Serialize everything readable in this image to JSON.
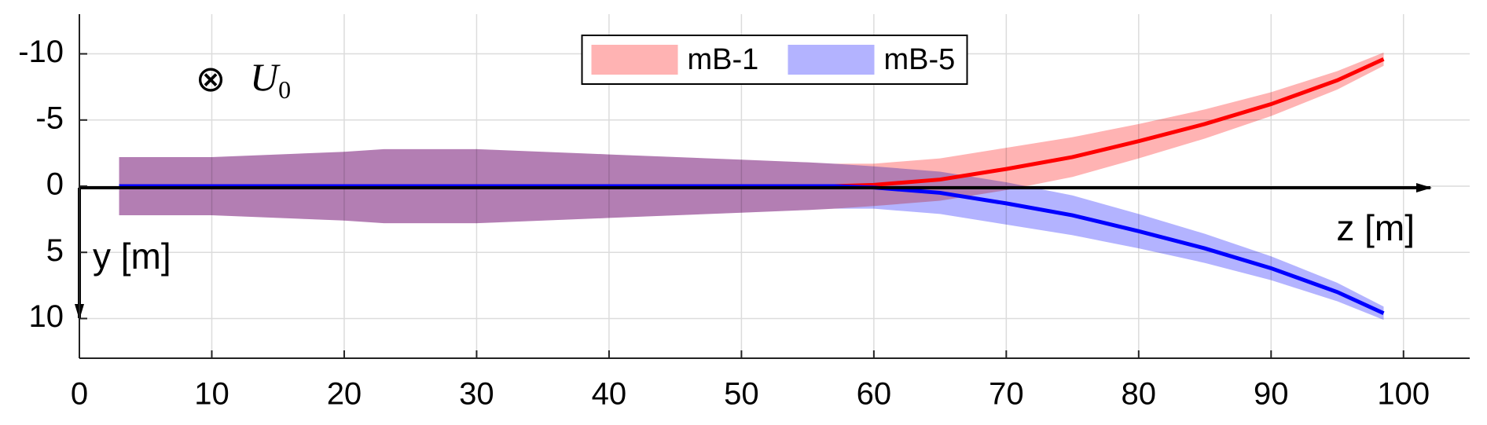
{
  "chart_data": {
    "type": "band",
    "x": [
      3,
      10,
      20,
      23,
      30,
      40,
      50,
      55,
      57,
      60,
      65,
      70,
      75,
      80,
      85,
      90,
      95,
      98.5
    ],
    "series": [
      {
        "name": "mB-1",
        "color": "#ff0000",
        "band_color": "#ffb3b3",
        "values": [
          0,
          0,
          0,
          0,
          0,
          0,
          0,
          0,
          0,
          -0.1,
          -0.5,
          -1.3,
          -2.2,
          -3.4,
          -4.7,
          -6.2,
          -8.0,
          -9.6
        ],
        "lower": [
          -2.2,
          -2.2,
          -2.6,
          -2.8,
          -2.8,
          -2.4,
          -2.0,
          -1.8,
          -1.7,
          -1.7,
          -2.1,
          -2.9,
          -3.7,
          -4.7,
          -5.8,
          -7.1,
          -8.7,
          -10.1
        ],
        "upper": [
          2.2,
          2.2,
          2.6,
          2.8,
          2.8,
          2.4,
          2.0,
          1.8,
          1.7,
          1.5,
          1.1,
          0.3,
          -0.7,
          -2.1,
          -3.6,
          -5.3,
          -7.3,
          -9.1
        ]
      },
      {
        "name": "mB-5",
        "color": "#0000ff",
        "band_color": "#b3b3ff",
        "values": [
          0,
          0,
          0,
          0,
          0,
          0,
          0,
          0,
          0,
          0.1,
          0.5,
          1.3,
          2.2,
          3.4,
          4.7,
          6.2,
          8.0,
          9.6
        ],
        "lower": [
          -2.2,
          -2.2,
          -2.6,
          -2.8,
          -2.8,
          -2.4,
          -2.0,
          -1.8,
          -1.7,
          -1.5,
          -1.1,
          -0.3,
          0.7,
          2.1,
          3.6,
          5.3,
          7.3,
          9.1
        ],
        "upper": [
          2.2,
          2.2,
          2.6,
          2.8,
          2.8,
          2.4,
          2.0,
          1.8,
          1.7,
          1.7,
          2.1,
          2.9,
          3.7,
          4.7,
          5.8,
          7.1,
          8.7,
          10.1
        ]
      }
    ],
    "xlim": [
      0,
      105
    ],
    "ylim": [
      -13,
      13
    ],
    "y_reversed": true,
    "xticks": [
      0,
      10,
      20,
      30,
      40,
      50,
      60,
      70,
      80,
      90,
      100
    ],
    "yticks": [
      -10,
      -5,
      0,
      5,
      10
    ],
    "grid": true,
    "legend": "north",
    "annotations": {
      "symbol": "⊗",
      "variable": "U",
      "subscript": "0",
      "y_axis_label": "y [m]",
      "z_axis_label": "z [m]"
    }
  }
}
